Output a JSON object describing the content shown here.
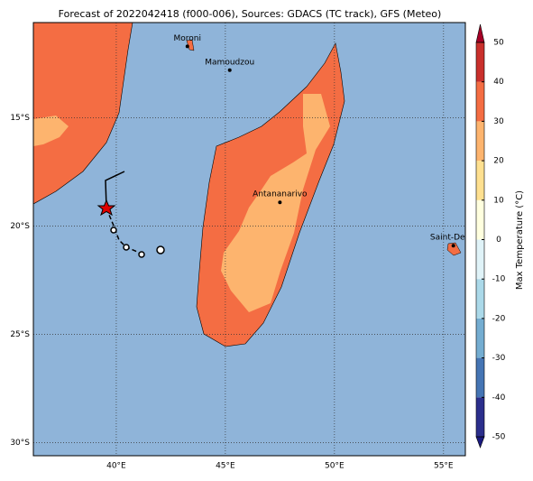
{
  "map": {
    "title": "Forecast of 2022042418 (f000-006), Sources: GDACS (TC track), GFS (Meteo)",
    "lonlim": [
      36.2,
      56.0
    ],
    "latlim": [
      -10.6,
      -30.6
    ],
    "xticks": [
      {
        "value": 40,
        "label": "40°E"
      },
      {
        "value": 45,
        "label": "45°E"
      },
      {
        "value": 50,
        "label": "50°E"
      },
      {
        "value": 55,
        "label": "55°E"
      }
    ],
    "yticks": [
      {
        "value": -15,
        "label": "15°S"
      },
      {
        "value": -20,
        "label": "20°S"
      },
      {
        "value": -25,
        "label": "25°S"
      },
      {
        "value": -30,
        "label": "30°S"
      }
    ],
    "cities": [
      {
        "name": "Moroni",
        "lon": 43.26,
        "lat": -11.7
      },
      {
        "name": "Mamoudzou",
        "lon": 45.2,
        "lat": -12.8
      },
      {
        "name": "Antananarivo",
        "lon": 47.5,
        "lat": -18.9
      },
      {
        "name": "Saint-Denis",
        "lon": 55.45,
        "lat": -20.9
      }
    ]
  },
  "colorbar": {
    "label": "Max Temperature (°C)",
    "lim": [
      -50,
      50
    ],
    "ticks": [
      -50,
      -40,
      -30,
      -20,
      -10,
      0,
      10,
      20,
      30,
      40,
      50
    ],
    "colors": [
      "#2b2f8c",
      "#4575b4",
      "#74add1",
      "#abd9e9",
      "#e0f3f8",
      "#ffffdf",
      "#fee090",
      "#fdb46e",
      "#f46d43",
      "#c9302c"
    ],
    "under": "#1a1a80",
    "over": "#a50026"
  }
}
